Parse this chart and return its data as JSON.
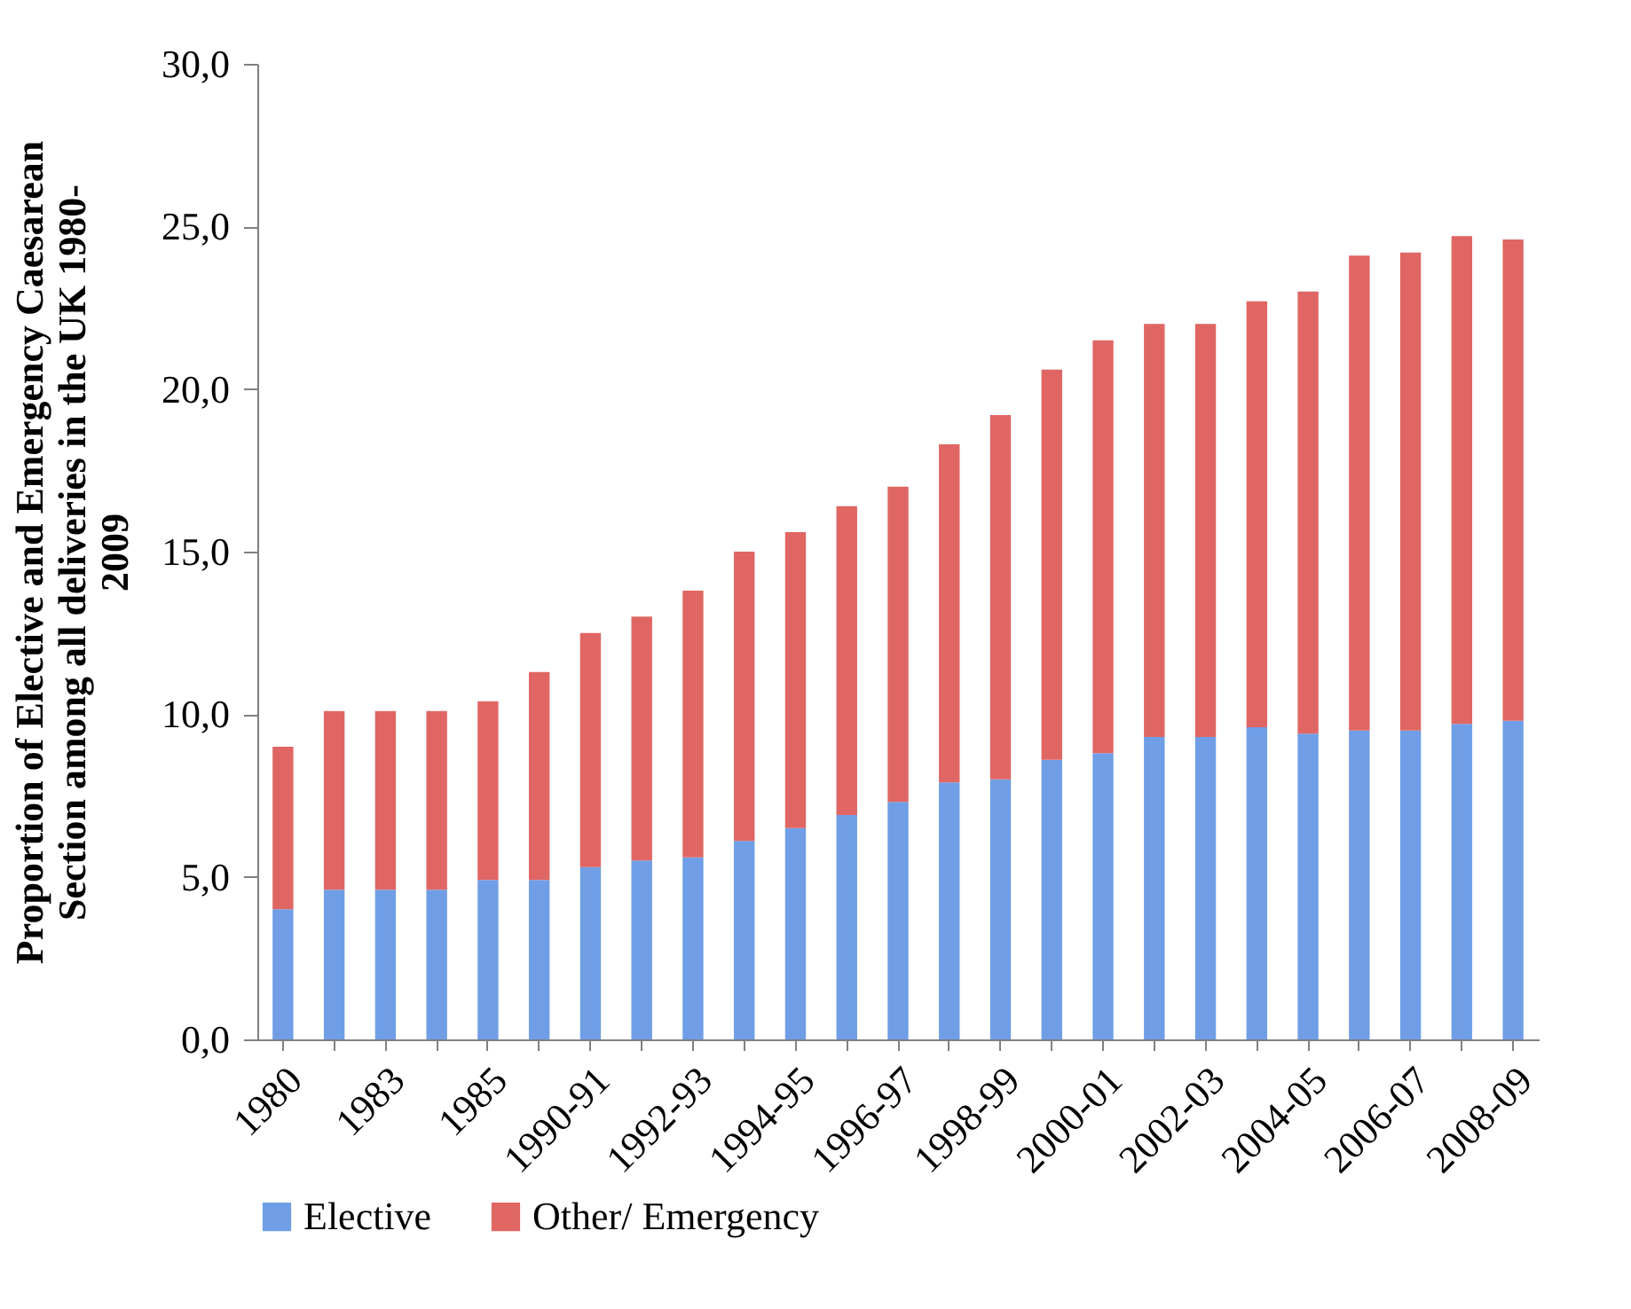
{
  "chart_data": {
    "type": "bar",
    "stacked": true,
    "ylabel": "Proportion of Elective and Emergency Caesarean Section among all deliveries in the UK 1980-2009",
    "categories": [
      "1980",
      null,
      "1983",
      null,
      "1985",
      null,
      "1990-91",
      null,
      "1992-93",
      null,
      "1994-95",
      null,
      "1996-97",
      null,
      "1998-99",
      null,
      "2000-01",
      null,
      "2002-03",
      null,
      "2004-05",
      null,
      "2006-07",
      null,
      "2008-09"
    ],
    "series": [
      {
        "name": "Elective",
        "color": "#6f9ee6",
        "values": [
          4.0,
          4.6,
          4.6,
          4.6,
          4.9,
          4.9,
          5.3,
          5.5,
          5.6,
          6.1,
          6.5,
          6.9,
          7.3,
          7.9,
          8.0,
          8.6,
          8.8,
          9.3,
          9.3,
          9.6,
          9.4,
          9.5,
          9.5,
          9.7,
          9.8
        ]
      },
      {
        "name": "Other/ Emergency",
        "color": "#e06664",
        "values": [
          5.0,
          5.5,
          5.5,
          5.5,
          5.5,
          6.4,
          7.2,
          7.5,
          8.2,
          8.9,
          9.1,
          9.5,
          9.7,
          10.4,
          11.2,
          12.0,
          12.7,
          12.7,
          12.7,
          13.1,
          13.6,
          14.6,
          14.7,
          15.0,
          14.8
        ]
      }
    ],
    "ylim": [
      0,
      30
    ],
    "yticks": [
      {
        "value": 0,
        "label": "0,0"
      },
      {
        "value": 5,
        "label": "5,0"
      },
      {
        "value": 10,
        "label": "10,0"
      },
      {
        "value": 15,
        "label": "15,0"
      },
      {
        "value": 20,
        "label": "20,0"
      },
      {
        "value": 25,
        "label": "25,0"
      },
      {
        "value": 30,
        "label": "30,0"
      }
    ],
    "grid": false,
    "legend": "bottom"
  }
}
